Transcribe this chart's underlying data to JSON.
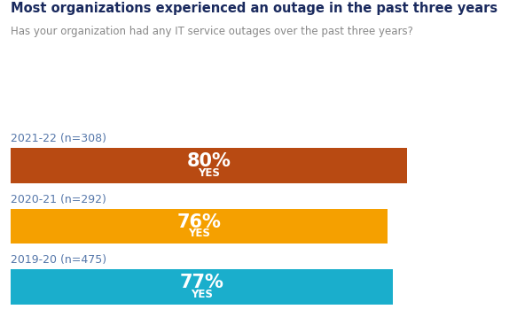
{
  "title": "Most organizations experienced an outage in the past three years",
  "subtitle": "Has your organization had any IT service outages over the past three years?",
  "title_color": "#1a2a5e",
  "subtitle_color": "#888888",
  "bars": [
    {
      "label": "2021-22 (n=308)",
      "value": 80,
      "pct_text": "80%",
      "yes_text": "YES",
      "color": "#b84a12"
    },
    {
      "label": "2020-21 (n=292)",
      "value": 76,
      "pct_text": "76%",
      "yes_text": "YES",
      "color": "#f5a000"
    },
    {
      "label": "2019-20 (n=475)",
      "value": 77,
      "pct_text": "77%",
      "yes_text": "YES",
      "color": "#1aaecc"
    }
  ],
  "bar_text_color": "#ffffff",
  "label_color": "#5577aa",
  "xlim": [
    0,
    100
  ],
  "bar_height": 0.58,
  "figsize": [
    5.83,
    3.58
  ],
  "dpi": 100,
  "background_color": "#ffffff"
}
